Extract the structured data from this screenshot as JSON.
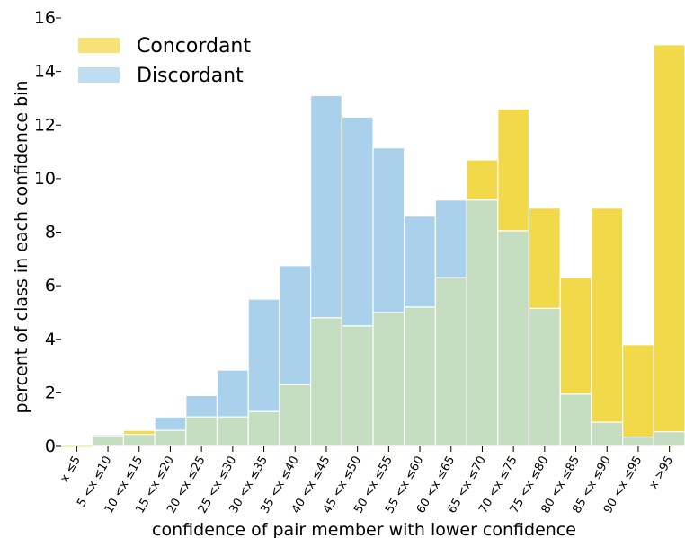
{
  "chart_data": {
    "type": "bar",
    "title": "",
    "xlabel": "confidence of pair member with lower confidence",
    "ylabel": "percent of class in each confidence bin",
    "ylim": [
      0,
      16
    ],
    "yticks": [
      "0",
      "2",
      "4",
      "6",
      "8",
      "10",
      "12",
      "14",
      "16"
    ],
    "categories": [
      "x ≤5",
      "5 <x ≤10",
      "10 <x ≤15",
      "15 <x ≤20",
      "20 <x ≤25",
      "25 <x ≤30",
      "30 <x ≤35",
      "35 <x ≤40",
      "40 <x ≤45",
      "45 <x ≤50",
      "50 <x ≤55",
      "55 <x ≤60",
      "60 <x ≤65",
      "65 <x ≤70",
      "70 <x ≤75",
      "75 <x ≤80",
      "80 <x ≤85",
      "85 <x ≤90",
      "90 <x ≤95",
      "x >95"
    ],
    "series": [
      {
        "name": "Concordant",
        "color": "#f2d949",
        "values": [
          0.0,
          0.4,
          0.6,
          0.6,
          1.1,
          1.1,
          1.3,
          2.3,
          4.8,
          4.5,
          5.0,
          5.2,
          6.3,
          10.7,
          12.6,
          8.9,
          6.3,
          8.9,
          3.8,
          15.0
        ]
      },
      {
        "name": "Discordant",
        "color": "#aad1ec",
        "values": [
          0.0,
          0.45,
          0.45,
          1.1,
          1.9,
          2.85,
          5.5,
          6.75,
          13.1,
          12.3,
          11.15,
          8.6,
          9.2,
          9.2,
          8.05,
          5.15,
          1.95,
          0.9,
          0.35,
          0.55
        ]
      }
    ],
    "overlap_color": "#c5dec2",
    "legend_position": "top-left",
    "grid": false
  }
}
